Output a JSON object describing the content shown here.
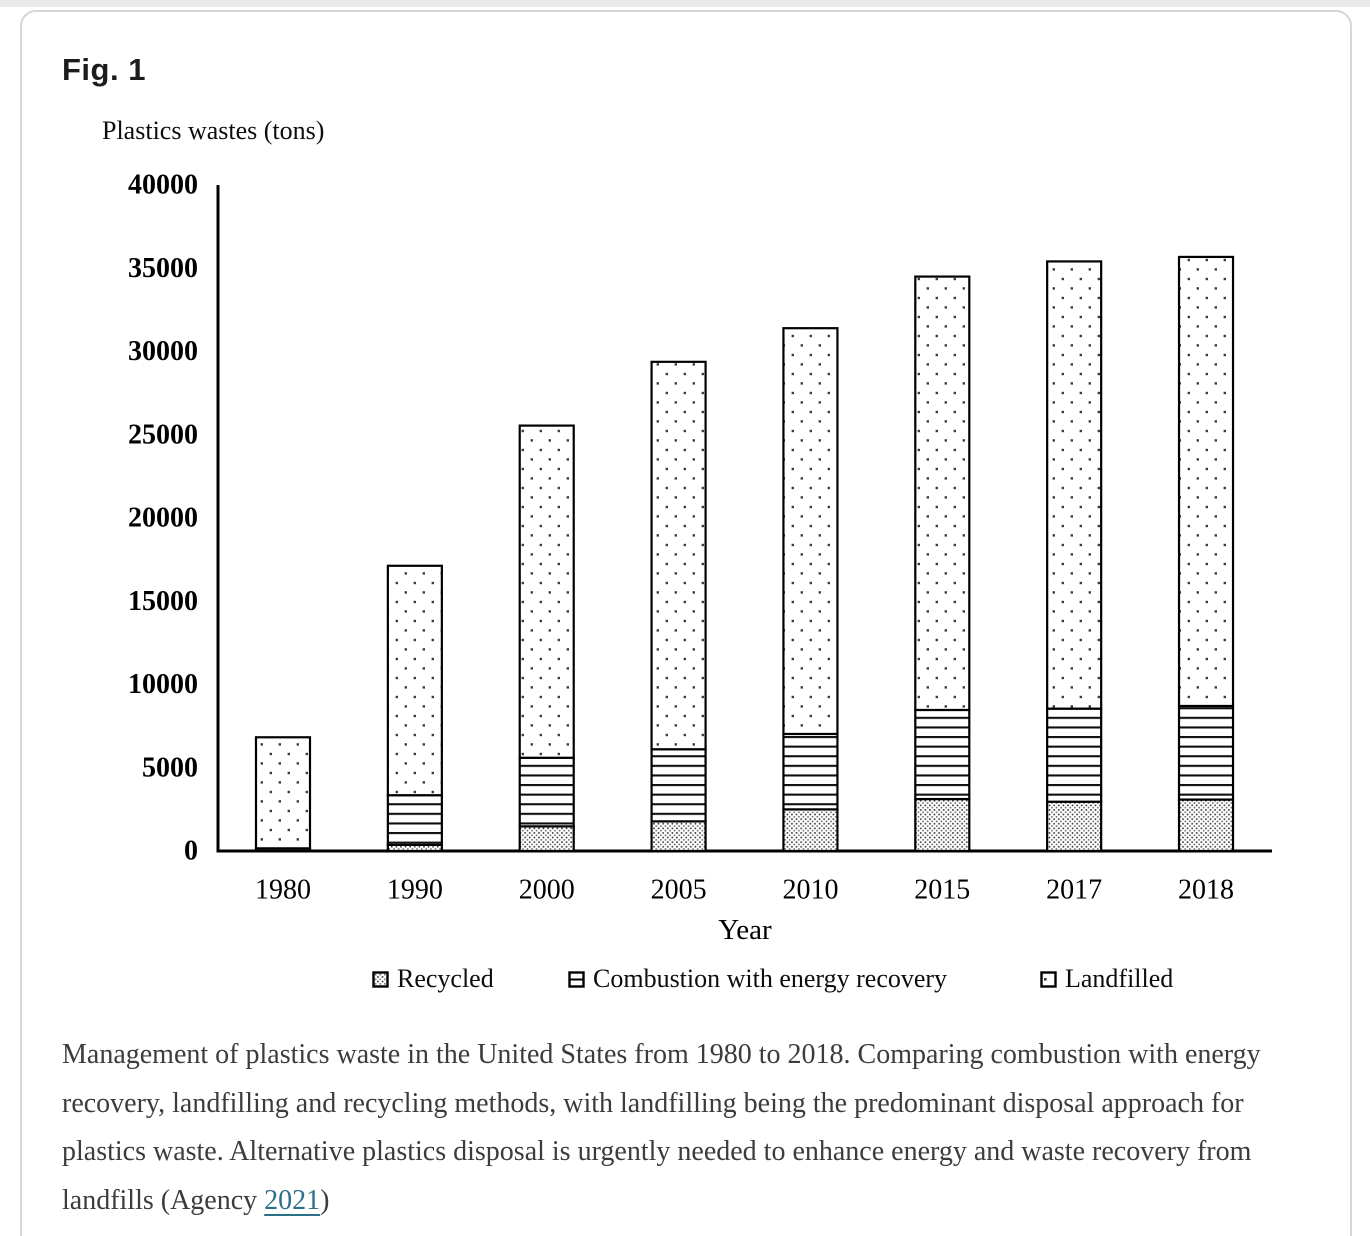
{
  "figure": {
    "label": "Fig. 1"
  },
  "chart_data": {
    "type": "bar",
    "stacked": true,
    "title": "Plastics wastes (tons)",
    "ylabel": "Plastics wastes (tons)",
    "xlabel": "Year",
    "categories": [
      "1980",
      "1990",
      "2000",
      "2005",
      "2010",
      "2015",
      "2017",
      "2018"
    ],
    "series": [
      {
        "name": "Recycled",
        "pattern": "dense-dots",
        "values": [
          20,
          370,
          1480,
          1780,
          2500,
          3120,
          2960,
          3090
        ]
      },
      {
        "name": "Combustion with energy recovery",
        "pattern": "horizontal-lines",
        "values": [
          140,
          2980,
          4120,
          4330,
          4530,
          5350,
          5590,
          5620
        ]
      },
      {
        "name": "Landfilled",
        "pattern": "sparse-dots",
        "values": [
          6670,
          13780,
          19950,
          23270,
          24370,
          26030,
          26860,
          26970
        ]
      }
    ],
    "totals": [
      6830,
      17130,
      25550,
      29380,
      31400,
      34500,
      35410,
      35680
    ],
    "ylim": [
      0,
      40000
    ],
    "yticks": [
      0,
      5000,
      10000,
      15000,
      20000,
      25000,
      30000,
      35000,
      40000
    ],
    "grid": false,
    "legend_position": "bottom"
  },
  "caption": {
    "text": "Management of plastics waste in the United States from 1980 to 2018. Comparing combustion with energy recovery, landfilling and recycling methods, with landfilling being the predominant disposal approach for plastics waste. Alternative plastics disposal is urgently needed to enhance energy and waste recovery from landfills (Agency ",
    "link_text": "2021",
    "text_after": ")"
  },
  "colors": {
    "ink": "#000000",
    "caption_text": "#3c3c3c",
    "link": "#2b7089",
    "card_border": "#d6d6d6",
    "title_text": "#1c1c1c"
  }
}
